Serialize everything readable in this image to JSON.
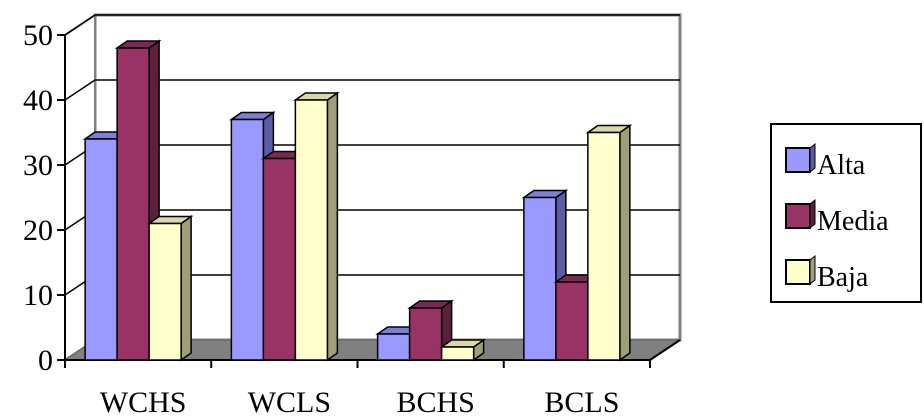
{
  "chart_data": {
    "type": "bar",
    "categories": [
      "WCHS",
      "WCLS",
      "BCHS",
      "BCLS"
    ],
    "series": [
      {
        "name": "Alta",
        "values": [
          34,
          37,
          4,
          25
        ],
        "color": "#9999ff",
        "side": "#5c5ca6",
        "top": "#7f7fd9"
      },
      {
        "name": "Media",
        "values": [
          48,
          31,
          8,
          12
        ],
        "color": "#993366",
        "side": "#5c1f3d",
        "top": "#7a2952"
      },
      {
        "name": "Baja",
        "values": [
          21,
          40,
          2,
          35
        ],
        "color": "#ffffcc",
        "side": "#9e9e78",
        "top": "#d9d9a8"
      }
    ],
    "ylim": [
      0,
      50
    ],
    "yticks": [
      "0",
      "10",
      "20",
      "30",
      "40",
      "50"
    ],
    "grid": true,
    "legend_position": "right",
    "title": "",
    "xlabel": "",
    "ylabel": ""
  }
}
